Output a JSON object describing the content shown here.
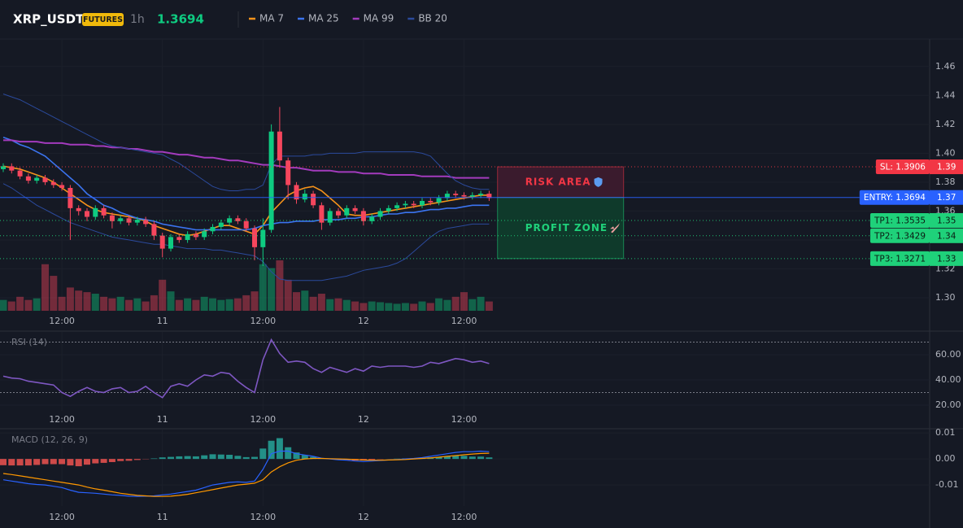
{
  "header": {
    "symbol": "XRP_USDT",
    "badge": "FUTURES",
    "interval": "1h",
    "last_price": 1.3694,
    "price_color": "#0ecb81"
  },
  "chart_data": [
    {
      "type": "candlestick",
      "categories": [
        null,
        null,
        null,
        null,
        null,
        null,
        null,
        "12:00",
        null,
        null,
        null,
        null,
        null,
        null,
        null,
        null,
        null,
        null,
        null,
        "11",
        null,
        null,
        null,
        null,
        null,
        null,
        null,
        null,
        null,
        null,
        null,
        "12:00",
        null,
        null,
        null,
        null,
        null,
        null,
        null,
        null,
        null,
        null,
        null,
        "12",
        null,
        null,
        null,
        null,
        null,
        null,
        null,
        null,
        null,
        null,
        null,
        "12:00",
        null,
        null,
        null
      ],
      "open": [
        1.389,
        1.391,
        1.388,
        1.384,
        1.381,
        1.383,
        1.38,
        1.378,
        1.376,
        1.362,
        1.36,
        1.356,
        1.362,
        1.357,
        1.353,
        1.355,
        1.352,
        1.354,
        1.351,
        1.343,
        1.334,
        1.342,
        1.34,
        1.344,
        1.342,
        1.346,
        1.349,
        1.352,
        1.355,
        1.353,
        1.348,
        1.335,
        1.347,
        1.415,
        1.395,
        1.378,
        1.368,
        1.372,
        1.364,
        1.352,
        1.36,
        1.357,
        1.362,
        1.36,
        1.353,
        1.356,
        1.36,
        1.362,
        1.364,
        1.365,
        1.364,
        1.367,
        1.366,
        1.369,
        1.372,
        1.371,
        1.37,
        1.371,
        1.372
      ],
      "high": [
        1.393,
        1.393,
        1.39,
        1.386,
        1.385,
        1.385,
        1.382,
        1.38,
        1.378,
        1.364,
        1.362,
        1.364,
        1.364,
        1.359,
        1.357,
        1.357,
        1.356,
        1.356,
        1.353,
        1.345,
        1.344,
        1.344,
        1.346,
        1.346,
        1.348,
        1.351,
        1.354,
        1.357,
        1.357,
        1.355,
        1.35,
        1.355,
        1.42,
        1.432,
        1.397,
        1.38,
        1.375,
        1.374,
        1.366,
        1.362,
        1.362,
        1.364,
        1.364,
        1.362,
        1.358,
        1.362,
        1.364,
        1.366,
        1.367,
        1.367,
        1.369,
        1.369,
        1.371,
        1.374,
        1.374,
        1.373,
        1.373,
        1.374,
        1.374
      ],
      "low": [
        1.387,
        1.386,
        1.382,
        1.379,
        1.379,
        1.378,
        1.376,
        1.374,
        1.34,
        1.357,
        1.353,
        1.354,
        1.355,
        1.348,
        1.351,
        1.35,
        1.35,
        1.349,
        1.34,
        1.328,
        1.332,
        1.338,
        1.338,
        1.34,
        1.34,
        1.344,
        1.347,
        1.35,
        1.351,
        1.346,
        1.326,
        1.322,
        1.345,
        1.39,
        1.368,
        1.365,
        1.366,
        1.362,
        1.347,
        1.35,
        1.355,
        1.355,
        1.358,
        1.35,
        1.351,
        1.354,
        1.358,
        1.36,
        1.362,
        1.362,
        1.362,
        1.364,
        1.364,
        1.367,
        1.369,
        1.368,
        1.368,
        1.369,
        1.367
      ],
      "close": [
        1.391,
        1.388,
        1.384,
        1.381,
        1.383,
        1.38,
        1.378,
        1.376,
        1.362,
        1.36,
        1.356,
        1.362,
        1.357,
        1.353,
        1.355,
        1.352,
        1.354,
        1.351,
        1.343,
        1.334,
        1.342,
        1.34,
        1.344,
        1.342,
        1.346,
        1.349,
        1.352,
        1.355,
        1.353,
        1.348,
        1.335,
        1.347,
        1.415,
        1.395,
        1.378,
        1.368,
        1.372,
        1.364,
        1.352,
        1.36,
        1.357,
        1.362,
        1.36,
        1.353,
        1.356,
        1.36,
        1.362,
        1.364,
        1.365,
        1.364,
        1.367,
        1.366,
        1.369,
        1.372,
        1.371,
        1.37,
        1.371,
        1.372,
        1.369
      ],
      "volume": [
        14,
        12,
        18,
        14,
        16,
        60,
        45,
        18,
        30,
        26,
        24,
        22,
        18,
        16,
        18,
        14,
        16,
        12,
        20,
        40,
        25,
        14,
        16,
        14,
        18,
        16,
        14,
        15,
        16,
        20,
        25,
        60,
        55,
        65,
        40,
        24,
        26,
        18,
        22,
        15,
        16,
        14,
        12,
        10,
        12,
        11,
        10,
        9,
        10,
        9,
        12,
        10,
        16,
        14,
        18,
        24,
        15,
        18,
        12
      ],
      "up_color": "#0ecb81",
      "down_color": "#f6465d",
      "series": [
        {
          "name": "MA 7",
          "color": "#f7931a",
          "values": [
            1.391,
            1.39,
            1.389,
            1.387,
            1.385,
            1.383,
            1.38,
            1.376,
            1.372,
            1.368,
            1.364,
            1.361,
            1.359,
            1.358,
            1.357,
            1.356,
            1.355,
            1.353,
            1.35,
            1.348,
            1.346,
            1.344,
            1.343,
            1.344,
            1.346,
            1.348,
            1.35,
            1.35,
            1.348,
            1.346,
            1.344,
            1.35,
            1.359,
            1.365,
            1.371,
            1.374,
            1.376,
            1.377,
            1.374,
            1.369,
            1.364,
            1.358,
            1.357,
            1.357,
            1.358,
            1.359,
            1.36,
            1.361,
            1.362,
            1.363,
            1.364,
            1.365,
            1.366,
            1.367,
            1.368,
            1.369,
            1.37,
            1.371,
            1.371
          ]
        },
        {
          "name": "MA 25",
          "color": "#3b74f0",
          "values": [
            1.411,
            1.409,
            1.406,
            1.404,
            1.401,
            1.398,
            1.393,
            1.388,
            1.383,
            1.378,
            1.372,
            1.368,
            1.364,
            1.362,
            1.359,
            1.357,
            1.355,
            1.354,
            1.353,
            1.351,
            1.35,
            1.349,
            1.348,
            1.347,
            1.347,
            1.347,
            1.347,
            1.347,
            1.347,
            1.347,
            1.348,
            1.35,
            1.351,
            1.352,
            1.352,
            1.353,
            1.353,
            1.353,
            1.354,
            1.354,
            1.354,
            1.355,
            1.355,
            1.356,
            1.356,
            1.357,
            1.358,
            1.358,
            1.359,
            1.359,
            1.36,
            1.361,
            1.361,
            1.362,
            1.362,
            1.363,
            1.364,
            1.364,
            1.364
          ]
        },
        {
          "name": "MA 99",
          "color": "#a33bbd",
          "values": [
            1.409,
            1.409,
            1.408,
            1.408,
            1.408,
            1.407,
            1.407,
            1.407,
            1.406,
            1.406,
            1.406,
            1.405,
            1.405,
            1.404,
            1.404,
            1.403,
            1.403,
            1.402,
            1.401,
            1.401,
            1.4,
            1.399,
            1.399,
            1.398,
            1.397,
            1.397,
            1.396,
            1.395,
            1.395,
            1.394,
            1.393,
            1.392,
            1.392,
            1.391,
            1.39,
            1.39,
            1.389,
            1.388,
            1.388,
            1.388,
            1.387,
            1.387,
            1.387,
            1.386,
            1.386,
            1.386,
            1.385,
            1.385,
            1.385,
            1.385,
            1.384,
            1.384,
            1.384,
            1.384,
            1.383,
            1.383,
            1.383,
            1.383,
            1.383
          ]
        },
        {
          "name": "BB 20",
          "color": "#2b4a9c",
          "upper": [
            1.441,
            1.439,
            1.437,
            1.434,
            1.431,
            1.428,
            1.425,
            1.422,
            1.419,
            1.416,
            1.413,
            1.41,
            1.407,
            1.405,
            1.404,
            1.403,
            1.402,
            1.401,
            1.4,
            1.399,
            1.396,
            1.393,
            1.389,
            1.385,
            1.381,
            1.377,
            1.375,
            1.374,
            1.374,
            1.375,
            1.375,
            1.378,
            1.392,
            1.398,
            1.398,
            1.398,
            1.398,
            1.399,
            1.399,
            1.4,
            1.4,
            1.4,
            1.4,
            1.401,
            1.401,
            1.401,
            1.401,
            1.401,
            1.401,
            1.401,
            1.4,
            1.398,
            1.392,
            1.386,
            1.381,
            1.378,
            1.376,
            1.375,
            1.375
          ],
          "lower": [
            1.379,
            1.376,
            1.372,
            1.368,
            1.364,
            1.361,
            1.358,
            1.355,
            1.352,
            1.35,
            1.348,
            1.346,
            1.344,
            1.342,
            1.341,
            1.34,
            1.339,
            1.338,
            1.337,
            1.337,
            1.336,
            1.335,
            1.334,
            1.334,
            1.334,
            1.333,
            1.333,
            1.332,
            1.331,
            1.33,
            1.329,
            1.325,
            1.318,
            1.313,
            1.312,
            1.312,
            1.312,
            1.312,
            1.312,
            1.313,
            1.314,
            1.315,
            1.317,
            1.319,
            1.32,
            1.321,
            1.322,
            1.324,
            1.327,
            1.332,
            1.337,
            1.342,
            1.346,
            1.348,
            1.349,
            1.35,
            1.351,
            1.351,
            1.351
          ]
        }
      ],
      "levels": [
        {
          "label": "SL: 1.3906",
          "value": 1.3906,
          "axis_label": "1.39",
          "color": "#f23645",
          "text_color": "#ffffff",
          "style": "dotted"
        },
        {
          "label": "ENTRY: 1.3694",
          "value": 1.3694,
          "axis_label": "1.37",
          "color": "#2962ff",
          "text_color": "#ffffff",
          "style": "solid"
        },
        {
          "label": "TP1: 1.3535",
          "value": 1.3535,
          "axis_label": "1.35",
          "color": "#1fd17a",
          "text_color": "#0b1a12",
          "style": "dotted"
        },
        {
          "label": "TP2: 1.3429",
          "value": 1.3429,
          "axis_label": "1.34",
          "color": "#1fd17a",
          "text_color": "#0b1a12",
          "style": "dotted"
        },
        {
          "label": "TP3: 1.3271",
          "value": 1.3271,
          "axis_label": "1.33",
          "color": "#1fd17a",
          "text_color": "#0b1a12",
          "style": "dotted"
        }
      ],
      "zones": [
        {
          "label": "RISK AREA",
          "color": "#f23645",
          "fill": "#3a1b2d"
        },
        {
          "label": "PROFIT ZONE",
          "color": "#1fd17a",
          "fill": "#0f3a2b"
        }
      ],
      "ylim": [
        1.291,
        1.479
      ],
      "yticks": [
        {
          "value": 1.3,
          "label": "1.30"
        },
        {
          "value": 1.32,
          "label": "1.32"
        },
        {
          "value": 1.34,
          "label": "1.34"
        },
        {
          "value": 1.36,
          "label": "1.36"
        },
        {
          "value": 1.38,
          "label": "1.38"
        },
        {
          "value": 1.4,
          "label": "1.40"
        },
        {
          "value": 1.42,
          "label": "1.42"
        },
        {
          "value": 1.44,
          "label": "1.44"
        },
        {
          "value": 1.46,
          "label": "1.46"
        }
      ],
      "grid": true
    },
    {
      "type": "line",
      "title": "RSI (14)",
      "categories": [
        null,
        null,
        null,
        null,
        null,
        null,
        null,
        "12:00",
        null,
        null,
        null,
        null,
        null,
        null,
        null,
        null,
        null,
        null,
        null,
        "11",
        null,
        null,
        null,
        null,
        null,
        null,
        null,
        null,
        null,
        null,
        null,
        "12:00",
        null,
        null,
        null,
        null,
        null,
        null,
        null,
        null,
        null,
        null,
        null,
        "12",
        null,
        null,
        null,
        null,
        null,
        null,
        null,
        null,
        null,
        null,
        null,
        "12:00",
        null,
        null,
        null
      ],
      "values": [
        43,
        41.5,
        41,
        39,
        38,
        37,
        36,
        30,
        27,
        31,
        34,
        31,
        30,
        33,
        34,
        30,
        31,
        35,
        30,
        26,
        35,
        37,
        35,
        40,
        44,
        43,
        46,
        45,
        39,
        34,
        30,
        56,
        72,
        61,
        54,
        55,
        54,
        49,
        46,
        50,
        48,
        46,
        49,
        47,
        51,
        50,
        51,
        51,
        51,
        50,
        51,
        54,
        53,
        55,
        57,
        56,
        54,
        55,
        53
      ],
      "color": "#7e57c2",
      "guides": [
        70,
        30
      ],
      "ylim": [
        15.5,
        78.1
      ],
      "yticks": [
        {
          "value": 60,
          "label": "60.00"
        },
        {
          "value": 40,
          "label": "40.00"
        },
        {
          "value": 20,
          "label": "20.00"
        }
      ],
      "grid": true
    },
    {
      "type": "macd",
      "title": "MACD (12, 26, 9)",
      "categories": [
        null,
        null,
        null,
        null,
        null,
        null,
        null,
        "12:00",
        null,
        null,
        null,
        null,
        null,
        null,
        null,
        null,
        null,
        null,
        null,
        "11",
        null,
        null,
        null,
        null,
        null,
        null,
        null,
        null,
        null,
        null,
        null,
        "12:00",
        null,
        null,
        null,
        null,
        null,
        null,
        null,
        null,
        null,
        null,
        null,
        "12",
        null,
        null,
        null,
        null,
        null,
        null,
        null,
        null,
        null,
        null,
        null,
        "12:00",
        null,
        null,
        null
      ],
      "macd": [
        -0.008,
        -0.0085,
        -0.009,
        -0.0095,
        -0.0098,
        -0.01,
        -0.0105,
        -0.011,
        -0.012,
        -0.0128,
        -0.013,
        -0.0132,
        -0.0135,
        -0.0138,
        -0.014,
        -0.0143,
        -0.0144,
        -0.0143,
        -0.0142,
        -0.0138,
        -0.0135,
        -0.013,
        -0.0125,
        -0.012,
        -0.011,
        -0.01,
        -0.0095,
        -0.009,
        -0.0088,
        -0.009,
        -0.0085,
        -0.004,
        0.002,
        0.003,
        0.003,
        0.002,
        0.0015,
        0.001,
        0.0003,
        0.0,
        -0.0003,
        -0.0005,
        -0.0008,
        -0.001,
        -0.0008,
        -0.0006,
        -0.0004,
        -0.0002,
        0.0,
        0.0002,
        0.0005,
        0.001,
        0.0015,
        0.002,
        0.0025,
        0.0028,
        0.0028,
        0.003,
        0.0028
      ],
      "signal": [
        -0.0056,
        -0.006,
        -0.0065,
        -0.007,
        -0.0075,
        -0.008,
        -0.0085,
        -0.009,
        -0.0095,
        -0.01,
        -0.0108,
        -0.0115,
        -0.012,
        -0.0126,
        -0.0132,
        -0.0136,
        -0.014,
        -0.0142,
        -0.0144,
        -0.0144,
        -0.0143,
        -0.014,
        -0.0136,
        -0.013,
        -0.0124,
        -0.0118,
        -0.0112,
        -0.0106,
        -0.01,
        -0.0097,
        -0.0093,
        -0.008,
        -0.005,
        -0.003,
        -0.0015,
        -0.0005,
        0.0,
        0.0002,
        0.0002,
        0.0001,
        0.0,
        -0.0001,
        -0.0002,
        -0.0004,
        -0.0005,
        -0.0005,
        -0.0004,
        -0.0003,
        -0.0002,
        0.0,
        0.0002,
        0.0004,
        0.0007,
        0.001,
        0.0013,
        0.0016,
        0.0019,
        0.0021,
        0.0022
      ],
      "histogram": [
        -0.0024,
        -0.0025,
        -0.0025,
        -0.0025,
        -0.0023,
        -0.002,
        -0.002,
        -0.002,
        -0.0025,
        -0.0028,
        -0.0022,
        -0.0017,
        -0.0015,
        -0.0012,
        -0.0008,
        -0.0007,
        -0.0004,
        -0.0001,
        0.0002,
        0.0006,
        0.0008,
        0.001,
        0.0011,
        0.001,
        0.0014,
        0.0018,
        0.0017,
        0.0016,
        0.0012,
        0.0007,
        0.0008,
        0.004,
        0.007,
        0.008,
        0.0045,
        0.0025,
        0.0015,
        0.0008,
        0.0001,
        -0.0001,
        -0.0003,
        -0.0004,
        -0.0006,
        -0.0006,
        -0.0003,
        -0.0001,
        0.0,
        0.0001,
        0.0002,
        0.0002,
        0.0003,
        0.0006,
        0.0008,
        0.001,
        0.0012,
        0.0012,
        0.0009,
        0.0009,
        0.0006
      ],
      "macd_color": "#2962ff",
      "signal_color": "#ff9800",
      "hist_up_color": "#26a69a",
      "hist_down_color": "#ef5350",
      "ylim": [
        -0.0181,
        0.0113
      ],
      "yticks": [
        0.01,
        {
          "value": 0,
          "label": "0.00"
        },
        -0.01
      ],
      "grid": true
    }
  ]
}
